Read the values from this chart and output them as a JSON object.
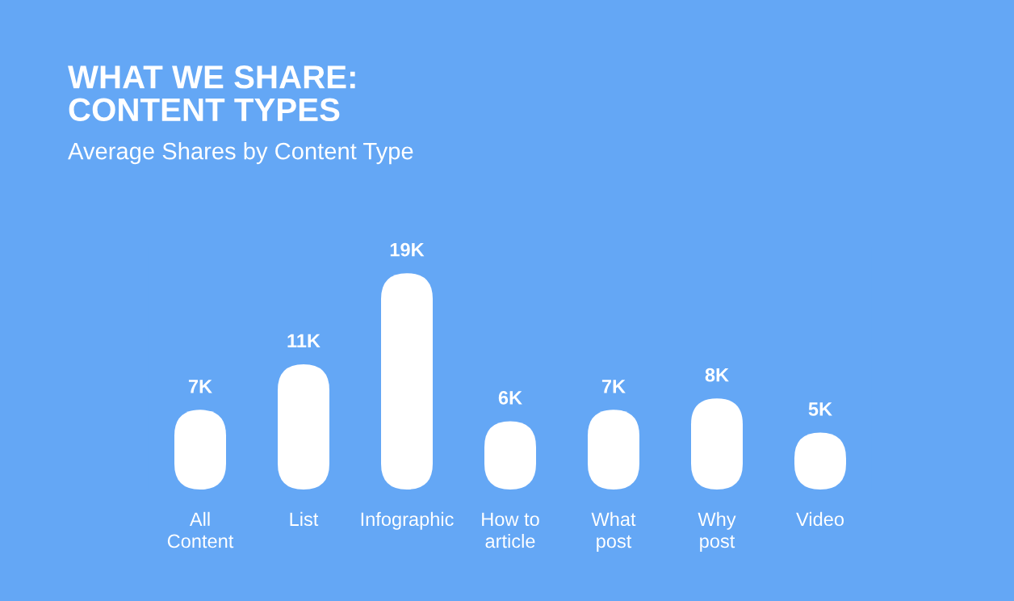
{
  "chart_data": {
    "type": "bar",
    "title": "WHAT WE SHARE:\nCONTENT TYPES",
    "subtitle": "Average Shares by Content Type",
    "categories": [
      "All\nContent",
      "List",
      "Infographic",
      "How to\narticle",
      "What\npost",
      "Why\npost",
      "Video"
    ],
    "values": [
      7,
      11,
      19,
      6,
      7,
      8,
      5
    ],
    "value_labels": [
      "7K",
      "11K",
      "19K",
      "6K",
      "7K",
      "8K",
      "5K"
    ],
    "color": "#ffffff",
    "grid": false,
    "legend": false
  }
}
